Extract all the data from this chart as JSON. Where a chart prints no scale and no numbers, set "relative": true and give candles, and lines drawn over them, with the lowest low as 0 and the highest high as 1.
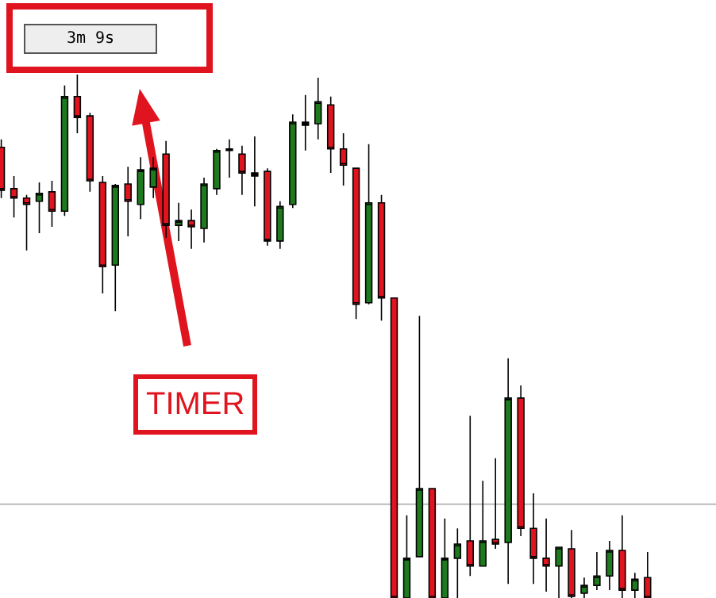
{
  "chart_data": {
    "type": "candlestick",
    "relative": true,
    "categories": [
      null,
      null,
      null,
      null,
      null,
      null,
      null,
      null,
      null,
      null,
      null,
      null,
      null,
      null,
      null,
      null,
      null,
      null,
      null,
      null,
      null,
      null,
      null,
      null,
      null,
      null,
      null,
      null,
      null,
      null,
      null,
      null,
      null,
      null,
      null,
      null,
      null,
      null,
      null,
      null,
      null,
      null,
      null,
      null,
      null,
      null,
      null,
      null,
      null,
      null,
      null,
      null
    ],
    "ohlc": [
      [
        0.861,
        0.876,
        0.764,
        0.779
      ],
      [
        0.782,
        0.806,
        0.727,
        0.764
      ],
      [
        0.764,
        0.77,
        0.664,
        0.752
      ],
      [
        0.758,
        0.794,
        0.697,
        0.773
      ],
      [
        0.776,
        0.797,
        0.709,
        0.739
      ],
      [
        0.739,
        0.979,
        0.73,
        0.958
      ],
      [
        0.958,
        1.0,
        0.888,
        0.918
      ],
      [
        0.921,
        0.927,
        0.776,
        0.797
      ],
      [
        0.794,
        0.806,
        0.582,
        0.633
      ],
      [
        0.636,
        0.791,
        0.548,
        0.788
      ],
      [
        0.791,
        0.824,
        0.691,
        0.758
      ],
      [
        0.752,
        0.842,
        0.724,
        0.818
      ],
      [
        0.785,
        0.842,
        0.764,
        0.821
      ],
      [
        0.848,
        0.873,
        0.688,
        0.712
      ],
      [
        0.712,
        0.755,
        0.682,
        0.721
      ],
      [
        0.721,
        0.742,
        0.667,
        0.709
      ],
      [
        0.706,
        0.803,
        0.679,
        0.791
      ],
      [
        0.782,
        0.858,
        0.77,
        0.855
      ],
      [
        0.855,
        0.876,
        0.803,
        0.858
      ],
      [
        0.848,
        0.864,
        0.77,
        0.812
      ],
      [
        0.812,
        0.882,
        0.748,
        0.806
      ],
      [
        0.815,
        0.821,
        0.673,
        0.682
      ],
      [
        0.682,
        0.758,
        0.667,
        0.748
      ],
      [
        0.752,
        0.924,
        0.745,
        0.909
      ],
      [
        0.903,
        0.961,
        0.855,
        0.909
      ],
      [
        0.906,
        0.994,
        0.876,
        0.948
      ],
      [
        0.942,
        0.958,
        0.812,
        0.858
      ],
      [
        0.858,
        0.888,
        0.788,
        0.827
      ],
      [
        0.821,
        0.821,
        0.533,
        0.561
      ],
      [
        0.564,
        0.867,
        0.561,
        0.755
      ],
      [
        0.755,
        0.77,
        0.53,
        0.573
      ],
      [
        0.573,
        0.573,
        0,
        0
      ],
      [
        0,
        0.158,
        0,
        0.076
      ],
      [
        0.079,
        0.539,
        0.079,
        0.209
      ],
      [
        0.209,
        0.209,
        0,
        0
      ],
      [
        0,
        0.152,
        0,
        0.076
      ],
      [
        0.076,
        0.133,
        0,
        0.103
      ],
      [
        0.109,
        0.348,
        0.042,
        0.061
      ],
      [
        0.061,
        0.224,
        0.061,
        0.109
      ],
      [
        0.112,
        0.267,
        0.094,
        0.103
      ],
      [
        0.106,
        0.458,
        0.027,
        0.382
      ],
      [
        0.382,
        0.406,
        0.118,
        0.133
      ],
      [
        0.133,
        0.2,
        0.027,
        0.076
      ],
      [
        0.076,
        0.152,
        0.012,
        0.061
      ],
      [
        0.061,
        0.097,
        0,
        0.097
      ],
      [
        0.094,
        0.13,
        0,
        0.003
      ],
      [
        0.009,
        0.039,
        0,
        0.024
      ],
      [
        0.024,
        0.088,
        0.015,
        0.042
      ],
      [
        0.042,
        0.109,
        0.015,
        0.091
      ],
      [
        0.091,
        0.158,
        0,
        0.015
      ],
      [
        0.015,
        0.048,
        0,
        0.036
      ],
      [
        0.039,
        0.088,
        0,
        0
      ]
    ],
    "colors": [
      "#e0141e",
      "#e0141e",
      "#e0141e",
      "#1e7a1e",
      "#e0141e",
      "#1e7a1e",
      "#e0141e",
      "#e0141e",
      "#e0141e",
      "#1e7a1e",
      "#e0141e",
      "#1e7a1e",
      "#1e7a1e",
      "#e0141e",
      "#1e7a1e",
      "#e0141e",
      "#1e7a1e",
      "#1e7a1e",
      "#000000",
      "#e0141e",
      "#000000",
      "#e0141e",
      "#1e7a1e",
      "#1e7a1e",
      "#000000",
      "#1e7a1e",
      "#e0141e",
      "#e0141e",
      "#e0141e",
      "#1e7a1e",
      "#e0141e",
      "#e0141e",
      "#1e7a1e",
      "#1e7a1e",
      "#e0141e",
      "#1e7a1e",
      "#1e7a1e",
      "#e0141e",
      "#1e7a1e",
      "#e0141e",
      "#1e7a1e",
      "#e0141e",
      "#e0141e",
      "#e0141e",
      "#1e7a1e",
      "#e0141e",
      "#1e7a1e",
      "#1e7a1e",
      "#1e7a1e",
      "#e0141e",
      "#1e7a1e",
      "#e0141e"
    ],
    "ref_lines": [
      {
        "axis": "y",
        "value": 0.179,
        "color": "#bbbbbb"
      }
    ],
    "annotations": [
      "3m 9s",
      "TIMER"
    ],
    "grid": false,
    "legend": false
  }
}
